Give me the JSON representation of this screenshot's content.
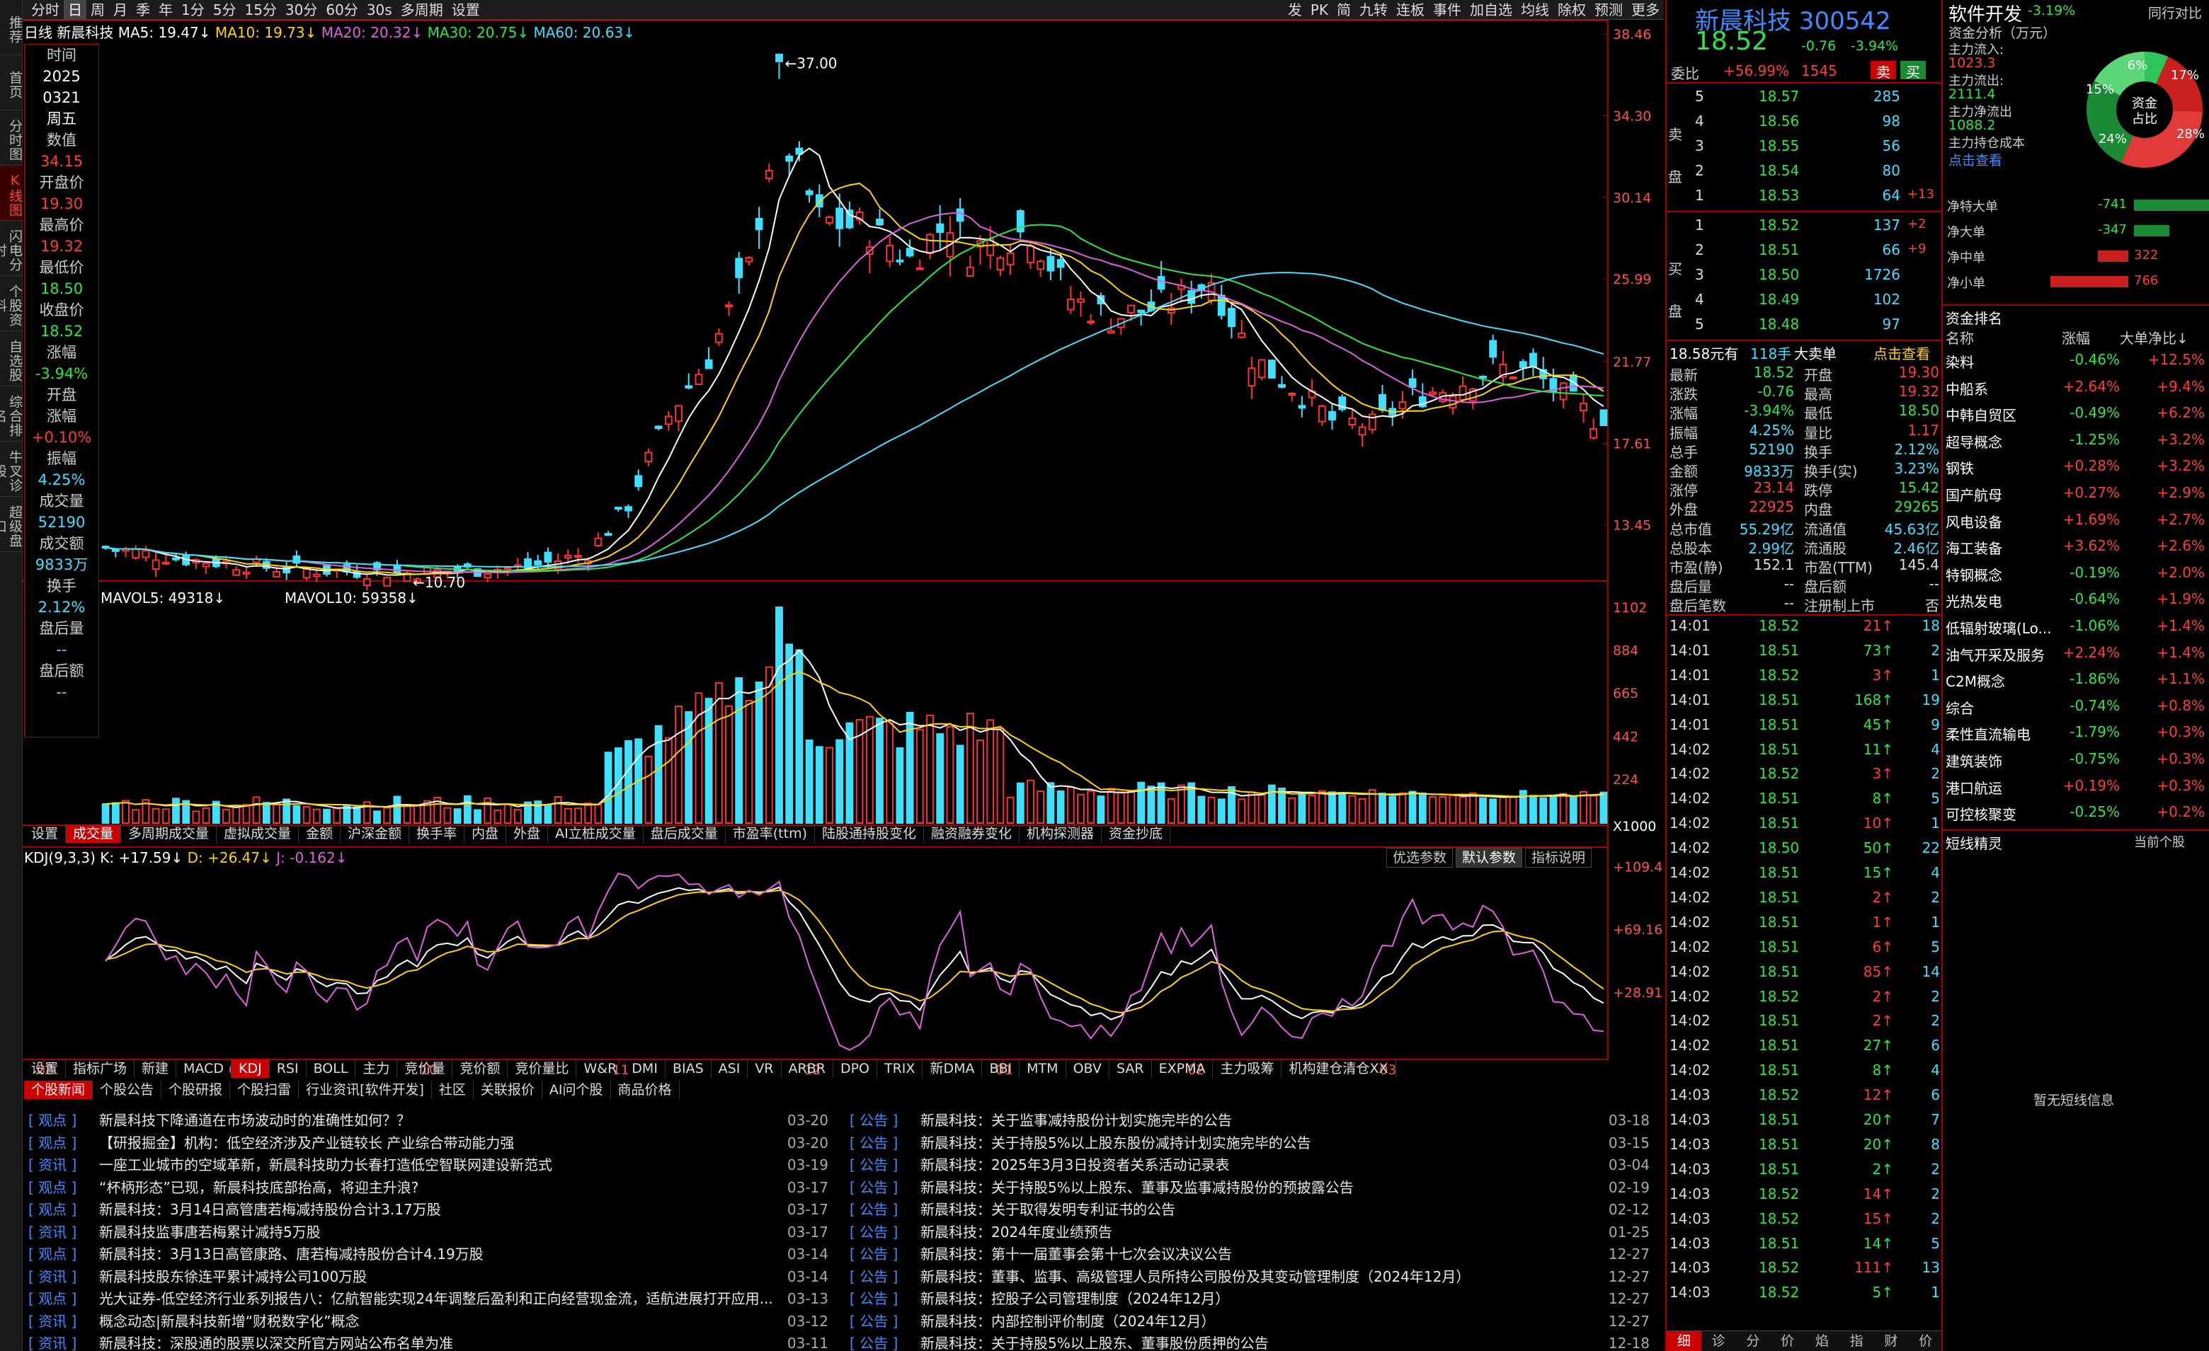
{
  "vtabs": [
    "推荐",
    "首页",
    "分时图",
    "K线图",
    "闪电分时",
    "个股资料",
    "自选股",
    "综合排名",
    "牛叉诊股",
    "超级盘口"
  ],
  "toolbar": {
    "items": [
      "分时",
      "日",
      "周",
      "月",
      "季",
      "年",
      "1分",
      "5分",
      "15分",
      "30分",
      "60分",
      "30s",
      "多周期",
      "设置"
    ],
    "active": "日",
    "right": [
      "发",
      "PK",
      "简",
      "九转",
      "连板",
      "事件",
      "加自选",
      "均线",
      "除权",
      "预测",
      "更多"
    ]
  },
  "legend": {
    "period": "日线",
    "name": "新晨科技",
    "ma5": "MA5: 19.47↓",
    "ma10": "MA10: 19.73↓",
    "ma20": "MA20: 20.32↓",
    "ma30": "MA30: 20.75↓",
    "ma60": "MA60: 20.63↓"
  },
  "infobox": [
    [
      "时间",
      "lbl"
    ],
    [
      "2025",
      "wht"
    ],
    [
      "0321",
      "wht"
    ],
    [
      "周五",
      "wht"
    ],
    [
      "数值",
      "lbl"
    ],
    [
      "34.15",
      "red"
    ],
    [
      "开盘价",
      "lbl"
    ],
    [
      "19.30",
      "red"
    ],
    [
      "最高价",
      "lbl"
    ],
    [
      "19.32",
      "red"
    ],
    [
      "最低价",
      "lbl"
    ],
    [
      "18.50",
      "grn"
    ],
    [
      "收盘价",
      "lbl"
    ],
    [
      "18.52",
      "grn"
    ],
    [
      "涨幅",
      "lbl"
    ],
    [
      "-3.94%",
      "grn"
    ],
    [
      "开盘",
      "lbl"
    ],
    [
      "涨幅",
      "lbl"
    ],
    [
      "+0.10%",
      "red"
    ],
    [
      "振幅",
      "lbl"
    ],
    [
      "4.25%",
      "cyn"
    ],
    [
      "成交量",
      "lbl"
    ],
    [
      "52190",
      "cyn"
    ],
    [
      "成交额",
      "lbl"
    ],
    [
      "9833万",
      "cyn"
    ],
    [
      "换手",
      "lbl"
    ],
    [
      "2.12%",
      "cyn"
    ],
    [
      "盘后量",
      "lbl"
    ],
    [
      "--",
      "cyn"
    ],
    [
      "盘后额",
      "lbl"
    ],
    [
      "--",
      "cyn"
    ]
  ],
  "price_axis": [
    "38.46",
    "34.30",
    "30.14",
    "25.99",
    "21.77",
    "17.61",
    "13.45"
  ],
  "price_marks": {
    "high": "37.00",
    "low": "10.70"
  },
  "vol_legend": {
    "mav5": "MAVOL5: 49318↓",
    "mav10": "MAVOL10: 59358↓"
  },
  "vol_axis": [
    "1102",
    "884",
    "665",
    "442",
    "224",
    "X1000"
  ],
  "tabs1": [
    "设置",
    "成交量",
    "多周期成交量",
    "虚拟成交量",
    "金额",
    "沪深金额",
    "换手率",
    "内盘",
    "外盘",
    "AI立桩成交量",
    "盘后成交量",
    "市盈率(ttm)",
    "陆股通持股变化",
    "融资融券变化",
    "机构探测器",
    "资金抄底"
  ],
  "kdj_legend": {
    "name": "KDJ(9,3,3)",
    "k": "K: +17.59↓",
    "d": "D: +26.47↓",
    "j": "J: -0.162↓"
  },
  "kdj_buttons": [
    "优选参数",
    "默认参数",
    "指标说明"
  ],
  "kdj_axis": [
    "+109.4",
    "+69.16",
    "+28.91"
  ],
  "months": [
    "08",
    "09",
    "10",
    "11",
    "12",
    "01",
    "02",
    "03"
  ],
  "tabs2": [
    "设置",
    "指标广场",
    "新建",
    "MACD",
    "KDJ",
    "RSI",
    "BOLL",
    "主力",
    "竞价量",
    "竞价额",
    "竞价量比",
    "W&R",
    "DMI",
    "BIAS",
    "ASI",
    "VR",
    "ARBR",
    "DPO",
    "TRIX",
    "新DMA",
    "BBI",
    "MTM",
    "OBV",
    "SAR",
    "EXPMA",
    "主力吸筹",
    "机构建仓清仓XX"
  ],
  "tabs3": [
    "个股新闻",
    "个股公告",
    "个股研报",
    "个股扫雷",
    "行业资讯[软件开发]",
    "社区",
    "关联报价",
    "AI问个股",
    "商品价格"
  ],
  "news_left": [
    [
      "观点",
      "新晨科技下降通道在市场波动时的准确性如何？？",
      "03-20"
    ],
    [
      "观点",
      "【研报掘金】机构：低空经济涉及产业链较长 产业综合带动能力强",
      "03-20"
    ],
    [
      "资讯",
      "一座工业城市的空域革新，新晨科技助力长春打造低空智联网建设新范式",
      "03-19"
    ],
    [
      "观点",
      "“杯柄形态”已现，新晨科技底部抬高，将迎主升浪?",
      "03-17"
    ],
    [
      "观点",
      "新晨科技：3月14日高管唐若梅减持股份合计3.17万股",
      "03-17"
    ],
    [
      "资讯",
      "新晨科技监事唐若梅累计减持5万股",
      "03-17"
    ],
    [
      "观点",
      "新晨科技：3月13日高管康路、唐若梅减持股份合计4.19万股",
      "03-14"
    ],
    [
      "资讯",
      "新晨科技股东徐连平累计减持公司100万股",
      "03-14"
    ],
    [
      "观点",
      "光大证券-低空经济行业系列报告八：亿航智能实现24年调整后盈利和正向经营现金流，适航进展打开应用...",
      "03-13"
    ],
    [
      "资讯",
      "概念动态|新晨科技新增“财税数字化”概念",
      "03-12"
    ],
    [
      "资讯",
      "新晨科技：深股通的股票以深交所官方网站公布名单为准",
      "03-11"
    ]
  ],
  "news_right": [
    [
      "公告",
      "新晨科技：关于监事减持股份计划实施完毕的公告",
      "03-18"
    ],
    [
      "公告",
      "新晨科技：关于持股5%以上股东股份减持计划实施完毕的公告",
      "03-15"
    ],
    [
      "公告",
      "新晨科技：2025年3月3日投资者关系活动记录表",
      "03-04"
    ],
    [
      "公告",
      "新晨科技：关于持股5%以上股东、董事及监事减持股份的预披露公告",
      "02-19"
    ],
    [
      "公告",
      "新晨科技：关于取得发明专利证书的公告",
      "02-12"
    ],
    [
      "公告",
      "新晨科技：2024年度业绩预告",
      "01-25"
    ],
    [
      "公告",
      "新晨科技：第十一届董事会第十七次会议决议公告",
      "12-27"
    ],
    [
      "公告",
      "新晨科技：董事、监事、高级管理人员所持公司股份及其变动管理制度（2024年12月）",
      "12-27"
    ],
    [
      "公告",
      "新晨科技：控股子公司管理制度（2024年12月）",
      "12-27"
    ],
    [
      "公告",
      "新晨科技：内部控制评价制度（2024年12月）",
      "12-27"
    ],
    [
      "公告",
      "新晨科技：关于持股5%以上股东、董事股份质押的公告",
      "12-18"
    ]
  ],
  "quote": {
    "name": "新晨科技",
    "code": "300542",
    "price": "18.52",
    "chg": "-0.76",
    "pct": "-3.94%",
    "weibi_label": "委比",
    "weibi": "+56.99%",
    "weicha": "1545",
    "sell": "卖",
    "buy": "买"
  },
  "asks": [
    [
      "5",
      "18.57",
      "285",
      ""
    ],
    [
      "4",
      "18.56",
      "98",
      ""
    ],
    [
      "3",
      "18.55",
      "56",
      ""
    ],
    [
      "2",
      "18.54",
      "80",
      ""
    ],
    [
      "1",
      "18.53",
      "64",
      "+13"
    ]
  ],
  "bids": [
    [
      "1",
      "18.52",
      "137",
      "+2"
    ],
    [
      "2",
      "18.51",
      "66",
      "+9"
    ],
    [
      "3",
      "18.50",
      "1726",
      ""
    ],
    [
      "4",
      "18.49",
      "102",
      ""
    ],
    [
      "5",
      "18.48",
      "97",
      ""
    ]
  ],
  "bigorder": {
    "label": "18.58元有",
    "val": "118手",
    "txt": "大卖单",
    "link": "点击查看"
  },
  "stats": [
    [
      "最新",
      "18.52",
      "grn",
      "开盘",
      "19.30",
      "red"
    ],
    [
      "涨跌",
      "-0.76",
      "grn",
      "最高",
      "19.32",
      "red"
    ],
    [
      "涨幅",
      "-3.94%",
      "grn",
      "最低",
      "18.50",
      "grn"
    ],
    [
      "振幅",
      "4.25%",
      "cyn",
      "量比",
      "1.17",
      "red"
    ],
    [
      "总手",
      "52190",
      "cyn",
      "换手",
      "2.12%",
      "cyn"
    ],
    [
      "金额",
      "9833万",
      "cyn",
      "换手(实)",
      "3.23%",
      "cyn"
    ],
    [
      "涨停",
      "23.14",
      "red",
      "跌停",
      "15.42",
      "grn"
    ],
    [
      "外盘",
      "22925",
      "red",
      "内盘",
      "29265",
      "grn"
    ],
    [
      "总市值",
      "55.29亿",
      "cyn",
      "流通值",
      "45.63亿",
      "cyn"
    ],
    [
      "总股本",
      "2.99亿",
      "cyn",
      "流通股",
      "2.46亿",
      "cyn"
    ],
    [
      "市盈(静)",
      "152.1",
      "wht",
      "市盈(TTM)",
      "145.4",
      "wht"
    ],
    [
      "盘后量",
      "--",
      "wht",
      "盘后额",
      "--",
      "wht"
    ],
    [
      "盘后笔数",
      "--",
      "wht",
      "注册制上市",
      "否",
      "wht"
    ]
  ],
  "ticks": [
    [
      "14:01",
      "18.52",
      "21",
      "↑",
      "18",
      "red"
    ],
    [
      "14:01",
      "18.51",
      "73",
      "↑",
      "2",
      "grn"
    ],
    [
      "14:01",
      "18.52",
      "3",
      "↑",
      "1",
      "red"
    ],
    [
      "14:01",
      "18.51",
      "168",
      "↑",
      "19",
      "grn"
    ],
    [
      "14:01",
      "18.51",
      "45",
      "↑",
      "9",
      "grn"
    ],
    [
      "14:02",
      "18.51",
      "11",
      "↑",
      "4",
      "grn"
    ],
    [
      "14:02",
      "18.52",
      "3",
      "↑",
      "2",
      "red"
    ],
    [
      "14:02",
      "18.51",
      "8",
      "↑",
      "5",
      "grn"
    ],
    [
      "14:02",
      "18.51",
      "10",
      "↑",
      "1",
      "red"
    ],
    [
      "14:02",
      "18.50",
      "50",
      "↑",
      "22",
      "grn"
    ],
    [
      "14:02",
      "18.51",
      "15",
      "↑",
      "4",
      "grn"
    ],
    [
      "14:02",
      "18.51",
      "2",
      "↑",
      "2",
      "red"
    ],
    [
      "14:02",
      "18.51",
      "1",
      "↑",
      "1",
      "red"
    ],
    [
      "14:02",
      "18.51",
      "6",
      "↑",
      "5",
      "red"
    ],
    [
      "14:02",
      "18.51",
      "85",
      "↑",
      "14",
      "red"
    ],
    [
      "14:02",
      "18.52",
      "2",
      "↑",
      "2",
      "red"
    ],
    [
      "14:02",
      "18.51",
      "2",
      "↑",
      "2",
      "red"
    ],
    [
      "14:02",
      "18.51",
      "27",
      "↑",
      "6",
      "grn"
    ],
    [
      "14:02",
      "18.51",
      "8",
      "↑",
      "4",
      "grn"
    ],
    [
      "14:03",
      "18.52",
      "12",
      "↑",
      "6",
      "red"
    ],
    [
      "14:03",
      "18.51",
      "20",
      "↑",
      "7",
      "grn"
    ],
    [
      "14:03",
      "18.51",
      "20",
      "↑",
      "8",
      "grn"
    ],
    [
      "14:03",
      "18.51",
      "2",
      "↑",
      "2",
      "grn"
    ],
    [
      "14:03",
      "18.52",
      "14",
      "↑",
      "2",
      "red"
    ],
    [
      "14:03",
      "18.52",
      "15",
      "↑",
      "2",
      "red"
    ],
    [
      "14:03",
      "18.51",
      "14",
      "↑",
      "5",
      "grn"
    ],
    [
      "14:03",
      "18.52",
      "111",
      "↑",
      "13",
      "red"
    ],
    [
      "14:03",
      "18.52",
      "5",
      "↑",
      "1",
      "grn"
    ]
  ],
  "bottom_tabs": [
    "细",
    "诊",
    "分",
    "价",
    "焰",
    "指",
    "财",
    "价"
  ],
  "sector": {
    "title": "软件开发",
    "pct": "-3.19%",
    "peer": "同行对比",
    "fund_title": "资金分析（万元）",
    "inflow_label": "主力流入:",
    "inflow": "1023.3",
    "outflow_label": "主力流出:",
    "outflow": "2111.4",
    "net_label": "主力净流出",
    "net": "1088.2",
    "cost_label": "主力持仓成本",
    "link": "点击查看",
    "donut_center": "资金占比",
    "pie_labels": [
      "6%",
      "17%",
      "15%",
      "28%",
      "24%"
    ],
    "pie_values": [
      6,
      17,
      28,
      24,
      15
    ],
    "pie_colors": [
      "#2ec45a",
      "#c91f1f",
      "#e03a3a",
      "#1b8a35",
      "#5bd77a"
    ]
  },
  "flows": [
    [
      "净特大单",
      "-741",
      "grn",
      0.88
    ],
    [
      "净大单",
      "-347",
      "grn",
      0.42
    ],
    [
      "净中单",
      "322",
      "red",
      0.36
    ],
    [
      "净小单",
      "766",
      "red",
      0.92
    ]
  ],
  "rank": {
    "title": "资金排名",
    "h1": "名称",
    "h2": "涨幅",
    "h3": "大单净比↓",
    "rows": [
      [
        "染料",
        "-0.46%",
        "+12.5%"
      ],
      [
        "中船系",
        "+2.64%",
        "+9.4%"
      ],
      [
        "中韩自贸区",
        "-0.49%",
        "+6.2%"
      ],
      [
        "超导概念",
        "-1.25%",
        "+3.2%"
      ],
      [
        "钢铁",
        "+0.28%",
        "+3.2%"
      ],
      [
        "国产航母",
        "+0.27%",
        "+2.9%"
      ],
      [
        "风电设备",
        "+1.69%",
        "+2.7%"
      ],
      [
        "海工装备",
        "+3.62%",
        "+2.6%"
      ],
      [
        "特钢概念",
        "-0.19%",
        "+2.0%"
      ],
      [
        "光热发电",
        "-0.64%",
        "+1.9%"
      ],
      [
        "低辐射玻璃(Lo...",
        "-1.06%",
        "+1.4%"
      ],
      [
        "油气开采及服务",
        "+2.24%",
        "+1.4%"
      ],
      [
        "C2M概念",
        "-1.86%",
        "+1.1%"
      ],
      [
        "综合",
        "-0.74%",
        "+0.8%"
      ],
      [
        "柔性直流输电",
        "-1.79%",
        "+0.3%"
      ],
      [
        "建筑装饰",
        "-0.75%",
        "+0.3%"
      ],
      [
        "港口航运",
        "+0.19%",
        "+0.3%"
      ],
      [
        "可控核聚变",
        "-0.25%",
        "+0.2%"
      ]
    ]
  },
  "short": {
    "title": "短线精灵",
    "sel": "当前个股",
    "empty": "暂无短线信息"
  },
  "chart_data": {
    "type": "candlestick",
    "title": "新晨科技 300542 日线",
    "ylim": [
      10.7,
      38.46
    ],
    "xlabels": [
      "08",
      "09",
      "10",
      "11",
      "12",
      "01",
      "02",
      "03"
    ],
    "last": {
      "open": 19.3,
      "high": 19.32,
      "low": 18.5,
      "close": 18.52
    },
    "high": 37.0,
    "low": 10.7,
    "ma": {
      "MA5": 19.47,
      "MA10": 19.73,
      "MA20": 20.32,
      "MA30": 20.75,
      "MA60": 20.63
    }
  }
}
